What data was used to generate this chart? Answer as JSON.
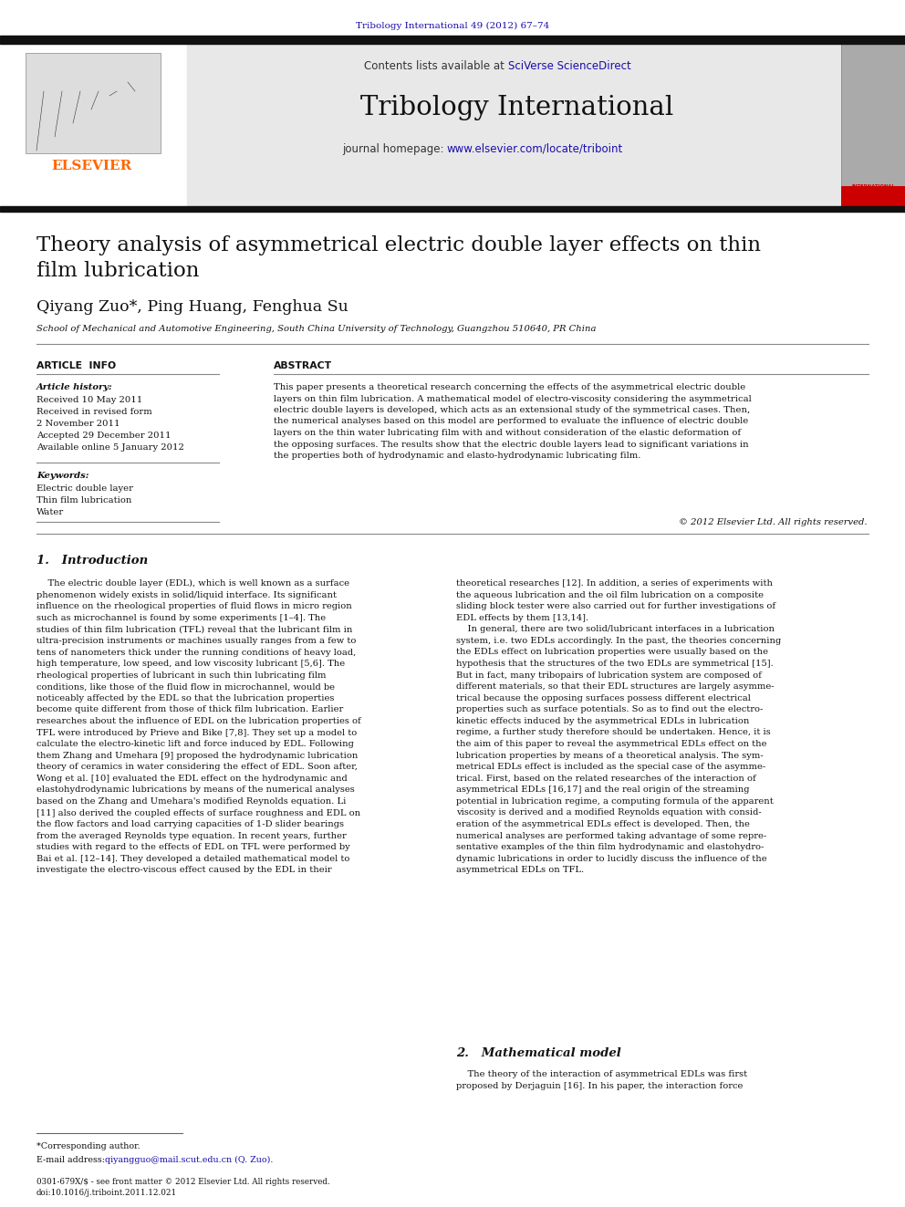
{
  "journal_ref": "Tribology International 49 (2012) 67–74",
  "journal_ref_color": "#1a0dab",
  "journal_name": "Tribology International",
  "header_text_contents": "Contents lists available at ",
  "sciverse_text": "SciVerse ScienceDirect",
  "homepage_label": "journal homepage: ",
  "homepage_url": "www.elsevier.com/locate/triboint",
  "header_bg": "#e8e8e8",
  "top_bar_color": "#111111",
  "title": "Theory analysis of asymmetrical electric double layer effects on thin\nfilm lubrication",
  "authors": "Qiyang Zuo*, Ping Huang, Fenghua Su",
  "affiliation": "School of Mechanical and Automotive Engineering, South China University of Technology, Guangzhou 510640, PR China",
  "article_info_header": "ARTICLE  INFO",
  "abstract_header": "ABSTRACT",
  "article_history_label": "Article history:",
  "received_1": "Received 10 May 2011",
  "received_revised": "Received in revised form",
  "revised_date": "2 November 2011",
  "accepted": "Accepted 29 December 2011",
  "available": "Available online 5 January 2012",
  "keywords_label": "Keywords:",
  "keyword1": "Electric double layer",
  "keyword2": "Thin film lubrication",
  "keyword3": "Water",
  "abstract_text": "This paper presents a theoretical research concerning the effects of the asymmetrical electric double\nlayers on thin film lubrication. A mathematical model of electro-viscosity considering the asymmetrical\nelectric double layers is developed, which acts as an extensional study of the symmetrical cases. Then,\nthe numerical analyses based on this model are performed to evaluate the influence of electric double\nlayers on the thin water lubricating film with and without consideration of the elastic deformation of\nthe opposing surfaces. The results show that the electric double layers lead to significant variations in\nthe properties both of hydrodynamic and elasto-hydrodynamic lubricating film.",
  "copyright_text": "© 2012 Elsevier Ltd. All rights reserved.",
  "section1_header": "1.   Introduction",
  "intro_col1": "    The electric double layer (EDL), which is well known as a surface\nphenomenon widely exists in solid/liquid interface. Its significant\ninfluence on the rheological properties of fluid flows in micro region\nsuch as microchannel is found by some experiments [1–4]. The\nstudies of thin film lubrication (TFL) reveal that the lubricant film in\nultra-precision instruments or machines usually ranges from a few to\ntens of nanometers thick under the running conditions of heavy load,\nhigh temperature, low speed, and low viscosity lubricant [5,6]. The\nrheological properties of lubricant in such thin lubricating film\nconditions, like those of the fluid flow in microchannel, would be\nnoticeably affected by the EDL so that the lubrication properties\nbecome quite different from those of thick film lubrication. Earlier\nresearches about the influence of EDL on the lubrication properties of\nTFL were introduced by Prieve and Bike [7,8]. They set up a model to\ncalculate the electro-kinetic lift and force induced by EDL. Following\nthem Zhang and Umehara [9] proposed the hydrodynamic lubrication\ntheory of ceramics in water considering the effect of EDL. Soon after,\nWong et al. [10] evaluated the EDL effect on the hydrodynamic and\nelastohydrodynamic lubrications by means of the numerical analyses\nbased on the Zhang and Umehara's modified Reynolds equation. Li\n[11] also derived the coupled effects of surface roughness and EDL on\nthe flow factors and load carrying capacities of 1-D slider bearings\nfrom the averaged Reynolds type equation. In recent years, further\nstudies with regard to the effects of EDL on TFL were performed by\nBai et al. [12–14]. They developed a detailed mathematical model to\ninvestigate the electro-viscous effect caused by the EDL in their",
  "intro_col2": "theoretical researches [12]. In addition, a series of experiments with\nthe aqueous lubrication and the oil film lubrication on a composite\nsliding block tester were also carried out for further investigations of\nEDL effects by them [13,14].\n    In general, there are two solid/lubricant interfaces in a lubrication\nsystem, i.e. two EDLs accordingly. In the past, the theories concerning\nthe EDLs effect on lubrication properties were usually based on the\nhypothesis that the structures of the two EDLs are symmetrical [15].\nBut in fact, many tribopairs of lubrication system are composed of\ndifferent materials, so that their EDL structures are largely asymme-\ntrical because the opposing surfaces possess different electrical\nproperties such as surface potentials. So as to find out the electro-\nkinetic effects induced by the asymmetrical EDLs in lubrication\nregime, a further study therefore should be undertaken. Hence, it is\nthe aim of this paper to reveal the asymmetrical EDLs effect on the\nlubrication properties by means of a theoretical analysis. The sym-\nmetrical EDLs effect is included as the special case of the asymme-\ntrical. First, based on the related researches of the interaction of\nasymmetrical EDLs [16,17] and the real origin of the streaming\npotential in lubrication regime, a computing formula of the apparent\nviscosity is derived and a modified Reynolds equation with consid-\neration of the asymmetrical EDLs effect is developed. Then, the\nnumerical analyses are performed taking advantage of some repre-\nsentative examples of the thin film hydrodynamic and elastohydro-\ndynamic lubrications in order to lucidly discuss the influence of the\nasymmetrical EDLs on TFL.",
  "section2_header": "2.   Mathematical model",
  "section2_col2": "    The theory of the interaction of asymmetrical EDLs was first\nproposed by Derjaguin [16]. In his paper, the interaction force",
  "footnote_star": "*Corresponding author.",
  "footnote_email_label": "E-mail address: ",
  "footnote_email": "qiyangguo@mail.scut.edu.cn (Q. Zuo).",
  "bottom_note": "0301-679X/$ - see front matter © 2012 Elsevier Ltd. All rights reserved.\ndoi:10.1016/j.triboint.2011.12.021",
  "elsevier_color": "#ff6600",
  "link_color": "#1a0dab",
  "bg_color": "#ffffff"
}
